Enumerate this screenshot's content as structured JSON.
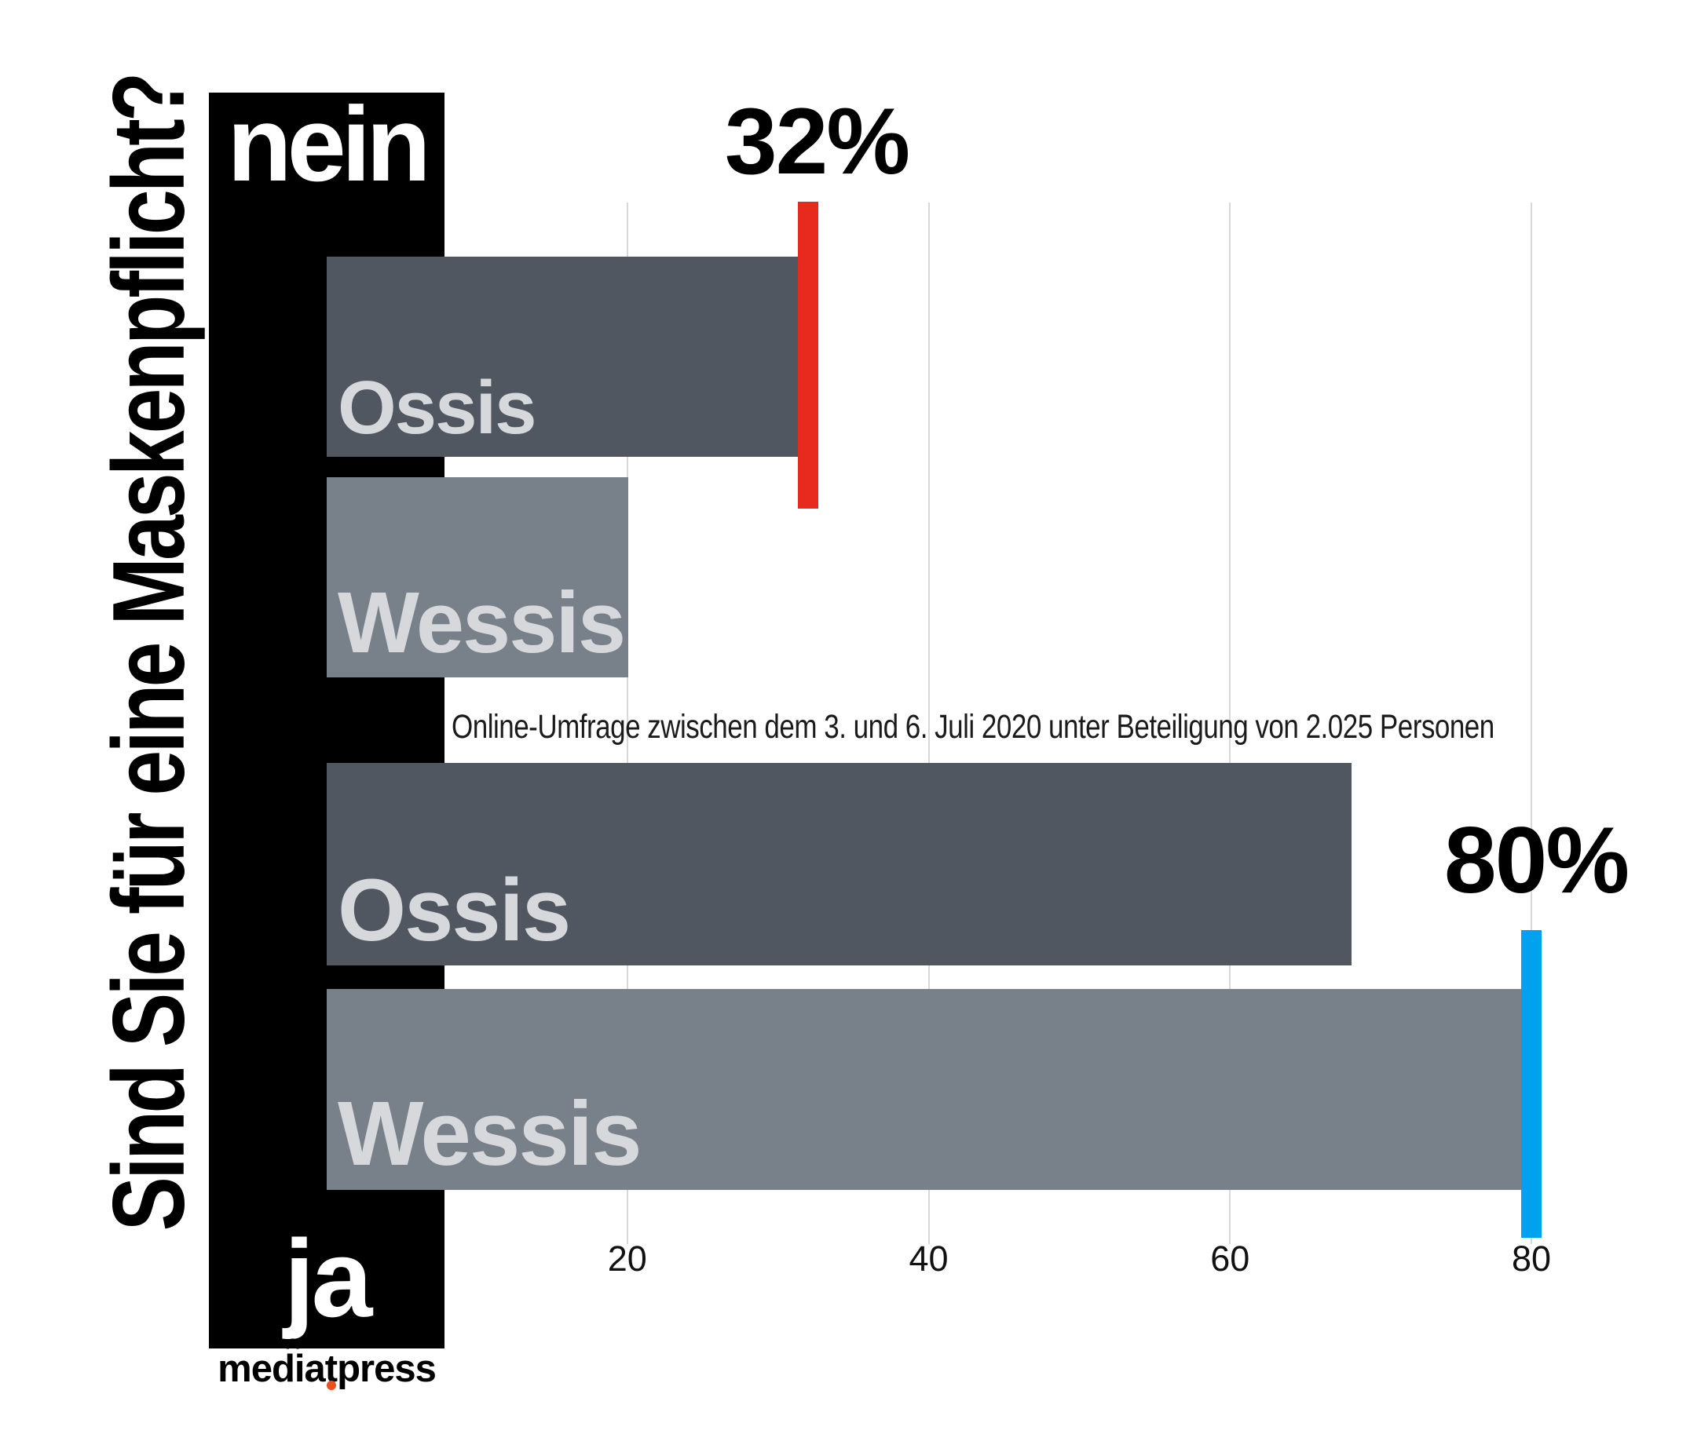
{
  "title": "Sind Sie für eine Maskenpflicht?",
  "subtitle": "Online-Umfrage zwischen dem 3. und 6. Juli 2020 unter Beteiligung von 2.025 Personen",
  "logo": {
    "text": "mediatpress",
    "dot_color": "#e8531d"
  },
  "colors": {
    "background": "#ffffff",
    "black_column": "#000000",
    "bar_dark": "#505761",
    "bar_light": "#78808a",
    "bar_label": "#d6d8db",
    "marker_red": "#e8291d",
    "marker_blue": "#00a1ed",
    "gridline": "#d8d8d8",
    "text": "#000000"
  },
  "chart_data": {
    "type": "bar",
    "orientation": "horizontal",
    "unit": "percent",
    "xlim": [
      0,
      85
    ],
    "x_ticks": [
      "20",
      "40",
      "60",
      "80"
    ],
    "x_tick_values": [
      20,
      40,
      60,
      80
    ],
    "grid": true,
    "question": "Sind Sie für eine Maskenpflicht?",
    "groups": [
      {
        "answer": "nein",
        "bars": [
          {
            "label": "Ossis",
            "value": 32,
            "shade": "dark",
            "marker": {
              "value": 32,
              "label": "32%",
              "color": "#e8291d"
            }
          },
          {
            "label": "Wessis",
            "value": 20,
            "shade": "light",
            "marker": null
          }
        ]
      },
      {
        "answer": "ja",
        "bars": [
          {
            "label": "Ossis",
            "value": 68,
            "shade": "dark",
            "marker": null
          },
          {
            "label": "Wessis",
            "value": 80,
            "shade": "light",
            "marker": {
              "value": 80,
              "label": "80%",
              "color": "#00a1ed"
            }
          }
        ]
      }
    ]
  }
}
